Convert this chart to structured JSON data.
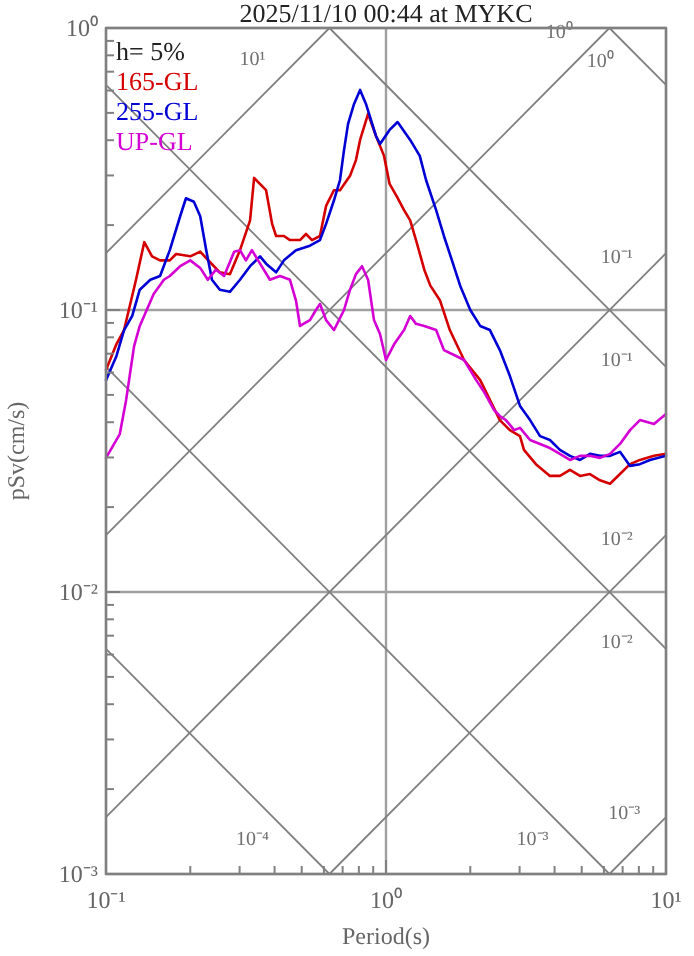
{
  "chart_data": {
    "type": "line",
    "title": "2025/11/10 00:44 at MYKC",
    "xlabel": "Period(s)",
    "ylabel": "pSv(cm/s)",
    "log": "xy",
    "grid": true,
    "legend": "top left",
    "marker": "none",
    "line_style": "solid",
    "xlim": [
      0.1,
      10
    ],
    "ylim": [
      0.001,
      1
    ],
    "xticks": [
      {
        "value": 0.1,
        "label": "10⁻¹"
      },
      {
        "value": 0.2,
        "label": null
      },
      {
        "value": 0.3,
        "label": null
      },
      {
        "value": 0.4,
        "label": null
      },
      {
        "value": 0.5,
        "label": null
      },
      {
        "value": 0.6,
        "label": null
      },
      {
        "value": 0.7,
        "label": null
      },
      {
        "value": 0.8,
        "label": null
      },
      {
        "value": 0.9,
        "label": null
      },
      {
        "value": 1,
        "label": "10⁰"
      },
      {
        "value": 2,
        "label": null
      },
      {
        "value": 3,
        "label": null
      },
      {
        "value": 4,
        "label": null
      },
      {
        "value": 5,
        "label": null
      },
      {
        "value": 6,
        "label": null
      },
      {
        "value": 7,
        "label": null
      },
      {
        "value": 8,
        "label": null
      },
      {
        "value": 9,
        "label": null
      },
      {
        "value": 10,
        "label": "10¹"
      }
    ],
    "yticks": [
      {
        "value": 0.001,
        "label": "10⁻³"
      },
      {
        "value": 0.002,
        "label": null
      },
      {
        "value": 0.003,
        "label": null
      },
      {
        "value": 0.004,
        "label": null
      },
      {
        "value": 0.005,
        "label": null
      },
      {
        "value": 0.006,
        "label": null
      },
      {
        "value": 0.007,
        "label": null
      },
      {
        "value": 0.008,
        "label": null
      },
      {
        "value": 0.009,
        "label": null
      },
      {
        "value": 0.01,
        "label": "10⁻²"
      },
      {
        "value": 0.02,
        "label": null
      },
      {
        "value": 0.03,
        "label": null
      },
      {
        "value": 0.04,
        "label": null
      },
      {
        "value": 0.05,
        "label": null
      },
      {
        "value": 0.06,
        "label": null
      },
      {
        "value": 0.07,
        "label": null
      },
      {
        "value": 0.08,
        "label": null
      },
      {
        "value": 0.09,
        "label": null
      },
      {
        "value": 0.1,
        "label": "10⁻¹"
      },
      {
        "value": 0.2,
        "label": null
      },
      {
        "value": 0.3,
        "label": null
      },
      {
        "value": 0.4,
        "label": null
      },
      {
        "value": 0.5,
        "label": null
      },
      {
        "value": 0.6,
        "label": null
      },
      {
        "value": 0.7,
        "label": null
      },
      {
        "value": 0.8,
        "label": null
      },
      {
        "value": 0.9,
        "label": null
      },
      {
        "value": 1,
        "label": "10⁰"
      }
    ],
    "annotations": [
      "h= 5%",
      {
        "text": "10¹",
        "x": 0.4,
        "y": 0.636
      },
      {
        "text": "10⁰",
        "x": 5,
        "y": 0.795
      },
      {
        "text": "10⁰",
        "x": 7,
        "y": 0.897
      },
      {
        "text": "10⁻¹",
        "x": 8,
        "y": 0.127
      },
      {
        "text": "10⁻¹",
        "x": 8,
        "y": 0.0785
      },
      {
        "text": "10⁻²",
        "x": 8,
        "y": 0.0127
      },
      {
        "text": "10⁻²",
        "x": 8,
        "y": 0.00785
      },
      {
        "text": "10⁻³",
        "x": 4,
        "y": 0.00157
      },
      {
        "text": "10⁻³",
        "x": 8.5,
        "y": 0.00135
      },
      {
        "text": "10⁻⁴",
        "x": 0.4,
        "y": 0.00157
      }
    ],
    "series": [
      {
        "name": "165-GL",
        "color": "#d40000",
        "x": [
          0.1,
          0.109,
          0.116,
          0.128,
          0.137,
          0.146,
          0.156,
          0.169,
          0.178,
          0.2,
          0.217,
          0.235,
          0.255,
          0.277,
          0.301,
          0.327,
          0.338,
          0.373,
          0.392,
          0.405,
          0.432,
          0.454,
          0.493,
          0.518,
          0.544,
          0.581,
          0.611,
          0.652,
          0.685,
          0.744,
          0.781,
          0.808,
          0.863,
          0.921,
          0.984,
          1.03,
          1.09,
          1.16,
          1.22,
          1.28,
          1.37,
          1.44,
          1.56,
          1.69,
          1.9,
          2.17,
          2.35,
          2.55,
          2.77,
          3.01,
          3.11,
          3.43,
          3.85,
          4.18,
          4.54,
          4.93,
          5.35,
          5.81,
          6.31,
          6.85,
          7.44,
          8.07,
          9.06,
          10
        ],
        "values": [
          0.0613,
          0.0757,
          0.0849,
          0.128,
          0.174,
          0.155,
          0.15,
          0.15,
          0.158,
          0.155,
          0.161,
          0.148,
          0.136,
          0.134,
          0.163,
          0.208,
          0.294,
          0.266,
          0.202,
          0.183,
          0.183,
          0.177,
          0.177,
          0.186,
          0.177,
          0.183,
          0.234,
          0.266,
          0.266,
          0.299,
          0.34,
          0.401,
          0.496,
          0.414,
          0.352,
          0.28,
          0.254,
          0.226,
          0.208,
          0.177,
          0.139,
          0.122,
          0.108,
          0.0849,
          0.0665,
          0.0564,
          0.048,
          0.0407,
          0.0375,
          0.0357,
          0.0319,
          0.0284,
          0.0258,
          0.0258,
          0.0271,
          0.0258,
          0.0262,
          0.0249,
          0.0242,
          0.0262,
          0.0284,
          0.0294,
          0.0304,
          0.0309
        ]
      },
      {
        "name": "255-GL",
        "color": "#0000d4",
        "x": [
          0.1,
          0.109,
          0.116,
          0.124,
          0.132,
          0.144,
          0.156,
          0.169,
          0.184,
          0.193,
          0.206,
          0.217,
          0.228,
          0.239,
          0.255,
          0.277,
          0.301,
          0.327,
          0.355,
          0.373,
          0.405,
          0.432,
          0.477,
          0.535,
          0.581,
          0.611,
          0.652,
          0.685,
          0.708,
          0.732,
          0.769,
          0.808,
          0.848,
          0.921,
          0.952,
          1.03,
          1.1,
          1.22,
          1.32,
          1.39,
          1.51,
          1.61,
          1.72,
          1.84,
          2.0,
          2.17,
          2.35,
          2.55,
          2.77,
          3.01,
          3.27,
          3.55,
          3.85,
          4.18,
          4.54,
          4.93,
          5.35,
          5.81,
          6.31,
          6.85,
          7.44,
          8.07,
          8.77,
          10
        ],
        "values": [
          0.0564,
          0.0687,
          0.0849,
          0.0952,
          0.118,
          0.128,
          0.132,
          0.163,
          0.215,
          0.249,
          0.242,
          0.215,
          0.163,
          0.128,
          0.118,
          0.116,
          0.128,
          0.143,
          0.155,
          0.146,
          0.136,
          0.15,
          0.163,
          0.169,
          0.177,
          0.202,
          0.245,
          0.289,
          0.369,
          0.457,
          0.538,
          0.603,
          0.538,
          0.414,
          0.388,
          0.435,
          0.464,
          0.401,
          0.352,
          0.289,
          0.226,
          0.183,
          0.15,
          0.122,
          0.1,
          0.0878,
          0.0849,
          0.0721,
          0.0583,
          0.0457,
          0.0407,
          0.0357,
          0.0346,
          0.0319,
          0.0304,
          0.0294,
          0.0309,
          0.0304,
          0.0304,
          0.0314,
          0.028,
          0.0284,
          0.0294,
          0.0304
        ]
      },
      {
        "name": "UP-GL",
        "color": "#d400d4",
        "x": [
          0.1,
          0.112,
          0.118,
          0.126,
          0.132,
          0.148,
          0.161,
          0.169,
          0.184,
          0.2,
          0.217,
          0.231,
          0.247,
          0.264,
          0.287,
          0.301,
          0.316,
          0.332,
          0.355,
          0.385,
          0.418,
          0.454,
          0.477,
          0.493,
          0.535,
          0.562,
          0.581,
          0.611,
          0.652,
          0.708,
          0.744,
          0.781,
          0.821,
          0.863,
          0.906,
          0.952,
          1.0,
          1.07,
          1.16,
          1.22,
          1.28,
          1.37,
          1.51,
          1.61,
          1.78,
          1.9,
          2.1,
          2.24,
          2.43,
          2.55,
          2.68,
          2.87,
          3.01,
          3.27,
          3.55,
          3.85,
          4.18,
          4.54,
          4.93,
          5.35,
          5.81,
          6.31,
          6.85,
          7.44,
          8.07,
          9.06,
          10
        ],
        "values": [
          0.0299,
          0.0363,
          0.048,
          0.0745,
          0.0878,
          0.114,
          0.128,
          0.132,
          0.143,
          0.15,
          0.141,
          0.128,
          0.139,
          0.132,
          0.161,
          0.163,
          0.15,
          0.163,
          0.146,
          0.128,
          0.132,
          0.128,
          0.108,
          0.0878,
          0.0921,
          0.1,
          0.105,
          0.0921,
          0.0849,
          0.1,
          0.118,
          0.134,
          0.143,
          0.128,
          0.0921,
          0.0822,
          0.0665,
          0.0757,
          0.0849,
          0.0952,
          0.0893,
          0.0878,
          0.0849,
          0.0721,
          0.0687,
          0.0665,
          0.0564,
          0.0512,
          0.0442,
          0.0421,
          0.0407,
          0.0375,
          0.0382,
          0.0346,
          0.0335,
          0.0324,
          0.0309,
          0.0294,
          0.0304,
          0.0304,
          0.0299,
          0.0309,
          0.0335,
          0.0375,
          0.0407,
          0.0394,
          0.0428
        ]
      },
      {
        "color": "#808080",
        "x": [
          0.1,
          0.628
        ],
        "values": [
          0.159,
          1
        ]
      },
      {
        "color": "#808080",
        "x": [
          0.1,
          6.28
        ],
        "values": [
          0.0159,
          1
        ]
      },
      {
        "color": "#808080",
        "x": [
          0.1,
          10
        ],
        "values": [
          0.00159,
          0.159
        ]
      },
      {
        "color": "#808080",
        "x": [
          0.628,
          10
        ],
        "values": [
          0.001,
          0.0159
        ]
      },
      {
        "color": "#808080",
        "x": [
          6.28,
          10
        ],
        "values": [
          0.001,
          0.00159
        ]
      },
      {
        "color": "#808080",
        "x": [
          6.28,
          10
        ],
        "values": [
          1,
          0.628
        ]
      },
      {
        "color": "#808080",
        "x": [
          0.628,
          10
        ],
        "values": [
          1,
          0.0628
        ]
      },
      {
        "color": "#808080",
        "x": [
          0.1,
          10
        ],
        "values": [
          0.628,
          0.00628
        ]
      },
      {
        "color": "#808080",
        "x": [
          0.1,
          6.28
        ],
        "values": [
          0.0628,
          0.001
        ]
      },
      {
        "color": "#808080",
        "x": [
          0.1,
          0.628
        ],
        "values": [
          0.00628,
          0.001
        ]
      }
    ]
  }
}
